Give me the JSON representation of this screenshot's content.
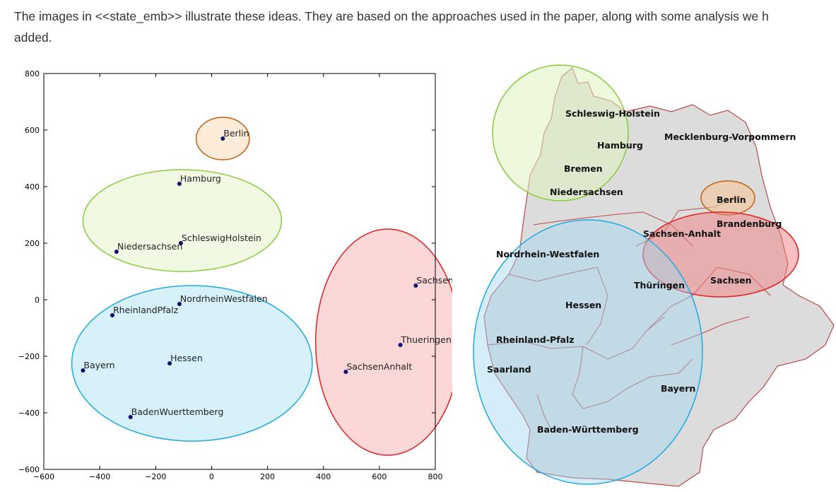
{
  "paragraph": {
    "line1": "The images in <<state_emb>> illustrate these ideas. They are based on the approaches used in the paper, along with some analysis we h",
    "line2": "added."
  },
  "chart_data": {
    "type": "scatter",
    "title": "",
    "xlabel": "",
    "ylabel": "",
    "xlim": [
      -600,
      800
    ],
    "ylim": [
      -600,
      800
    ],
    "xticks": [
      -600,
      -400,
      -200,
      0,
      200,
      400,
      600,
      800
    ],
    "yticks": [
      800,
      600,
      400,
      200,
      0,
      -200,
      -400,
      -600
    ],
    "tick_labels_x": [
      "−600",
      "−400",
      "−200",
      "0",
      "200",
      "400",
      "600",
      "800"
    ],
    "tick_labels_y": [
      "800",
      "600",
      "400",
      "200",
      "0",
      "−200",
      "−400",
      "−600"
    ],
    "points": [
      {
        "label": "Berlin",
        "x": 40,
        "y": 570
      },
      {
        "label": "Hamburg",
        "x": -115,
        "y": 410
      },
      {
        "label": "SchleswigHolstein",
        "x": -110,
        "y": 200
      },
      {
        "label": "Niedersachsen",
        "x": -340,
        "y": 170
      },
      {
        "label": "NordrheinWestfalen",
        "x": -115,
        "y": -15
      },
      {
        "label": "RheinlandPfalz",
        "x": -355,
        "y": -55
      },
      {
        "label": "Bayern",
        "x": -460,
        "y": -250
      },
      {
        "label": "Hessen",
        "x": -150,
        "y": -225
      },
      {
        "label": "BadenWuerttemberg",
        "x": -290,
        "y": -415
      },
      {
        "label": "Sachsen",
        "x": 730,
        "y": 50
      },
      {
        "label": "Thueringen",
        "x": 675,
        "y": -160
      },
      {
        "label": "SachsenAnhalt",
        "x": 480,
        "y": -255
      }
    ],
    "clusters": [
      {
        "color": "#c06010",
        "fill": "#fde7d2",
        "cx": 40,
        "cy": 570,
        "rx": 95,
        "ry": 75
      },
      {
        "color": "#8cc840",
        "fill": "#eef8de",
        "cx": -105,
        "cy": 280,
        "rx": 355,
        "ry": 180
      },
      {
        "color": "#20a8e0",
        "fill": "#cfeef9",
        "cx": -70,
        "cy": -225,
        "rx": 430,
        "ry": 275
      },
      {
        "color": "#e02020",
        "fill": "#fcd0d0",
        "cx": 630,
        "cy": -150,
        "rx": 258,
        "ry": 400
      }
    ],
    "point_color": "#0a0a6e"
  },
  "map": {
    "labels": [
      "Schleswig-Holstein",
      "Hamburg",
      "Mecklenburg-Vorpommern",
      "Bremen",
      "Niedersachsen",
      "Berlin",
      "Brandenburg",
      "Sachsen-Anhalt",
      "Nordrhein-Westfalen",
      "Thüringen",
      "Sachsen",
      "Hessen",
      "Rheinland-Pfalz",
      "Saarland",
      "Bayern",
      "Baden-Württemberg"
    ],
    "colors": {
      "state_fill": "#dcdcdc",
      "border": "#b84a4a"
    }
  }
}
